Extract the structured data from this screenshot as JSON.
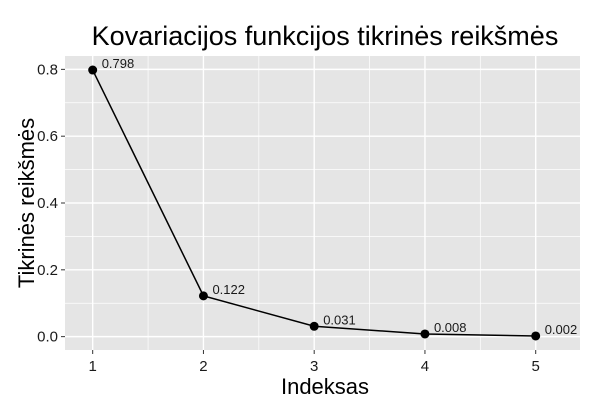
{
  "chart_data": {
    "type": "line",
    "title": "Kovariacijos funkcijos tikrinės reikšmės",
    "xlabel": "Indeksas",
    "ylabel": "Tikrinės reikšmės",
    "x": [
      1,
      2,
      3,
      4,
      5
    ],
    "values": [
      0.798,
      0.122,
      0.031,
      0.008,
      0.002
    ],
    "data_labels": [
      "0.798",
      "0.122",
      "0.031",
      "0.008",
      "0.002"
    ],
    "x_ticks": [
      "1",
      "2",
      "3",
      "4",
      "5"
    ],
    "y_ticks": [
      "0.0",
      "0.2",
      "0.4",
      "0.6",
      "0.8"
    ],
    "y_tick_values": [
      0,
      0.2,
      0.4,
      0.6,
      0.8
    ],
    "xlim": [
      0.75,
      5.4
    ],
    "ylim": [
      -0.04,
      0.84
    ],
    "grid": true,
    "legend": "none",
    "colors": {
      "panel": "#e5e5e5",
      "grid": "#ffffff",
      "line": "#000000",
      "point": "#000000"
    }
  }
}
